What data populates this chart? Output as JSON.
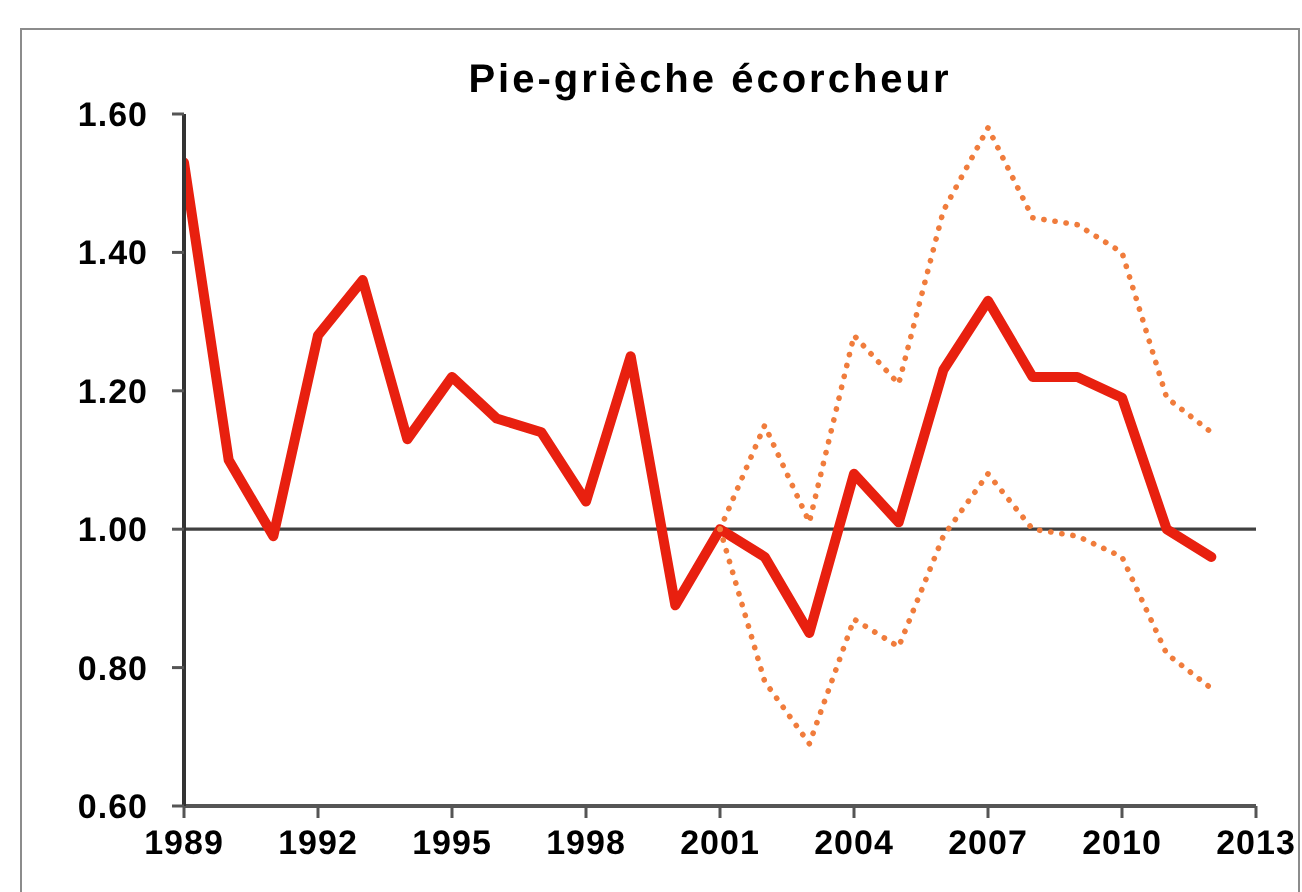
{
  "chart_data": {
    "type": "line",
    "title": "Pie-grièche écorcheur",
    "x": [
      1989,
      1990,
      1991,
      1992,
      1993,
      1994,
      1995,
      1996,
      1997,
      1998,
      1999,
      2000,
      2001,
      2002,
      2003,
      2004,
      2005,
      2006,
      2007,
      2008,
      2009,
      2010,
      2011,
      2012
    ],
    "series": [
      {
        "color": "#e8200f",
        "line_style": "solid",
        "values": [
          1.53,
          1.1,
          0.99,
          1.28,
          1.36,
          1.13,
          1.22,
          1.16,
          1.14,
          1.04,
          1.25,
          0.89,
          1.0,
          0.96,
          0.85,
          1.08,
          1.01,
          1.23,
          1.33,
          1.22,
          1.22,
          1.19,
          1.0,
          0.96
        ]
      },
      {
        "color": "#f07c3c",
        "line_style": "dotted",
        "x": [
          2001,
          2002,
          2003,
          2004,
          2005,
          2006,
          2007,
          2008,
          2009,
          2010,
          2011,
          2012
        ],
        "values": [
          1.0,
          1.15,
          1.01,
          1.28,
          1.21,
          1.46,
          1.58,
          1.45,
          1.44,
          1.4,
          1.19,
          1.14
        ]
      },
      {
        "color": "#f07c3c",
        "line_style": "dotted",
        "x": [
          2001,
          2002,
          2003,
          2004,
          2005,
          2006,
          2007,
          2008,
          2009,
          2010,
          2011,
          2012
        ],
        "values": [
          1.0,
          0.78,
          0.69,
          0.87,
          0.83,
          0.99,
          1.08,
          1.0,
          0.99,
          0.96,
          0.82,
          0.77
        ]
      }
    ],
    "xlim": [
      1989,
      2013
    ],
    "xticks": [
      1989,
      1992,
      1995,
      1998,
      2001,
      2004,
      2007,
      2010,
      2013
    ],
    "ylim": [
      0.6,
      1.6
    ],
    "yticks": [
      {
        "value": 0.6,
        "label": "0.60"
      },
      {
        "value": 0.8,
        "label": "0.80"
      },
      {
        "value": 1.0,
        "label": "1.00"
      },
      {
        "value": 1.2,
        "label": "1.20"
      },
      {
        "value": 1.4,
        "label": "1.40"
      },
      {
        "value": 1.6,
        "label": "1.60"
      }
    ],
    "ref_lines": [
      {
        "axis": "y",
        "value": 1,
        "color": "#404040"
      }
    ]
  }
}
